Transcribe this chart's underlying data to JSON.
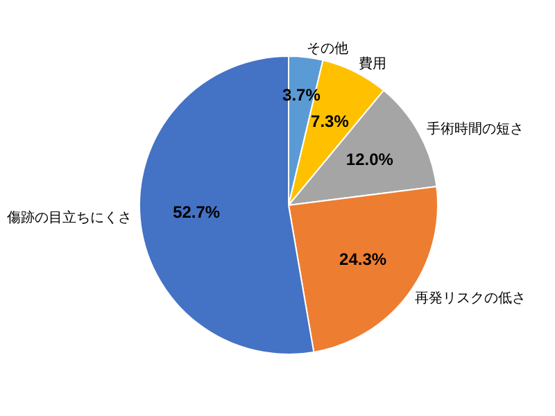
{
  "chart_data": {
    "type": "pie",
    "categories": [
      "その他",
      "費用",
      "手術時間の短さ",
      "再発リスクの低さ",
      "傷跡の目立ちにくさ"
    ],
    "values": [
      3.7,
      7.3,
      12.0,
      24.3,
      52.7
    ],
    "colors": [
      "#5b9bd5",
      "#ffc000",
      "#a5a5a5",
      "#ed7d31",
      "#4472c4"
    ],
    "value_labels": [
      "3.7%",
      "7.3%",
      "12.0%",
      "24.3%",
      "52.7%"
    ],
    "legend": false
  }
}
